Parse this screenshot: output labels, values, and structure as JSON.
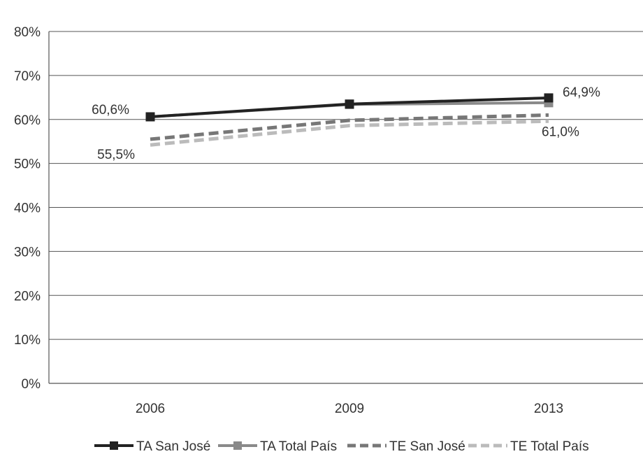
{
  "chart_data": {
    "type": "line",
    "title": "",
    "xlabel": "",
    "ylabel": "",
    "categories": [
      "2006",
      "2009",
      "2013"
    ],
    "ylim": [
      0,
      80
    ],
    "yticks": [
      "0%",
      "10%",
      "20%",
      "30%",
      "40%",
      "50%",
      "60%",
      "70%",
      "80%"
    ],
    "grid": true,
    "legend_position": "bottom",
    "series": [
      {
        "name": "TA San José",
        "values": [
          60.6,
          63.5,
          64.9
        ],
        "color": "#222222",
        "style": "solid",
        "marker": "square"
      },
      {
        "name": "TA Total País",
        "values": [
          60.6,
          63.4,
          63.8
        ],
        "color": "#8a8a8a",
        "style": "solid",
        "marker": "square"
      },
      {
        "name": "TE San José",
        "values": [
          55.5,
          59.8,
          61.0
        ],
        "color": "#777777",
        "style": "dashed",
        "marker": "none"
      },
      {
        "name": "TE Total País",
        "values": [
          54.2,
          58.6,
          59.6
        ],
        "color": "#bbbbbb",
        "style": "dashed",
        "marker": "none"
      }
    ],
    "annotations": [
      {
        "text": "60,6%",
        "series": 0,
        "index": 0
      },
      {
        "text": "55,5%",
        "series": 2,
        "index": 0
      },
      {
        "text": "64,9%",
        "series": 0,
        "index": 2
      },
      {
        "text": "61,0%",
        "series": 2,
        "index": 2
      }
    ]
  }
}
